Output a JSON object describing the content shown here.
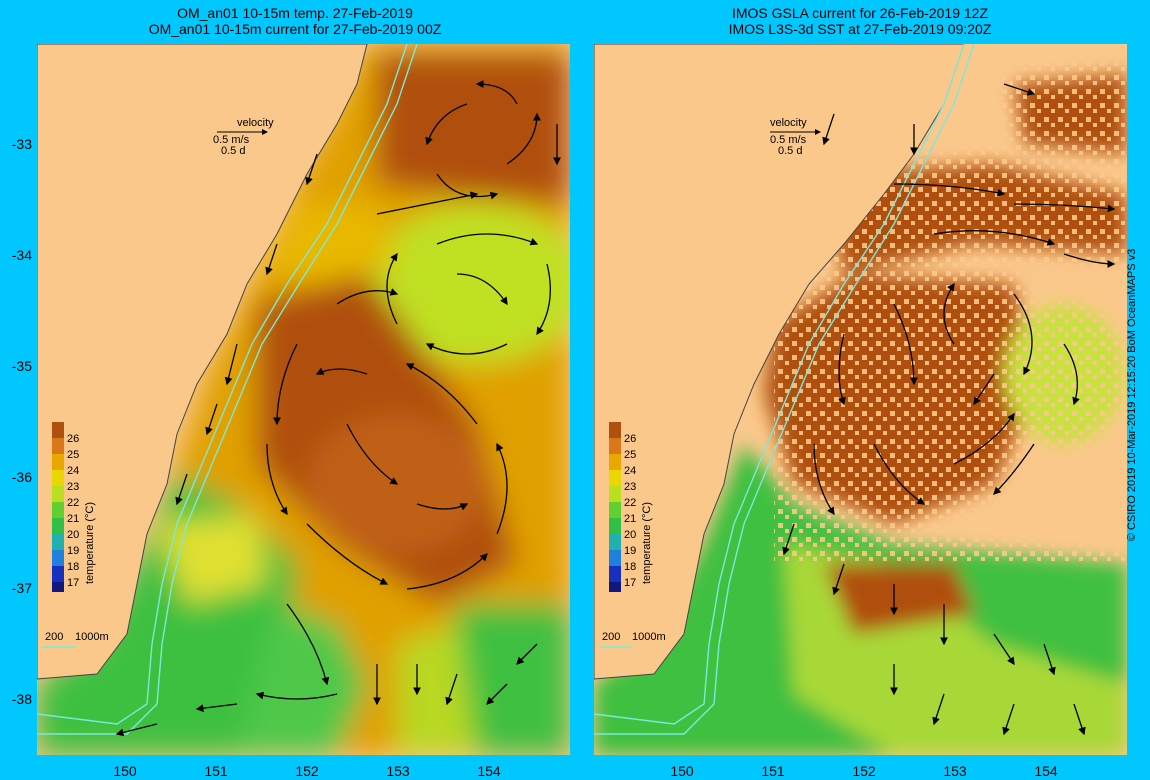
{
  "panels": [
    {
      "title_line1": "OM_an01 10-15m temp. 27-Feb-2019",
      "title_line2": "OM_an01 10-15m current for 27-Feb-2019 00Z"
    },
    {
      "title_line1": "IMOS GSLA current for 26-Feb-2019 12Z",
      "title_line2": "IMOS L3S-3d SST at 27-Feb-2019 09:20Z"
    }
  ],
  "velocity_key": {
    "label": "velocity",
    "speed": "0.5 m/s",
    "time": "0.5 d"
  },
  "colorbar": {
    "ticks": [
      "26",
      "25",
      "24",
      "23",
      "22",
      "21",
      "20",
      "19",
      "18",
      "17"
    ],
    "label": "temperature (°C)"
  },
  "isobath_legend": {
    "a": "200",
    "b": "1000m"
  },
  "y_ticks": [
    "-33",
    "-34",
    "-35",
    "-36",
    "-37",
    "-38"
  ],
  "x_ticks": [
    "150",
    "151",
    "152",
    "153",
    "154"
  ],
  "credit": "© CSIRO 2019  10-Mar-2019 12:15:20 BoM OceanMAPS v3",
  "colors": {
    "background": "#00c8ff",
    "land": "#fbc88c",
    "warm": "#b85410",
    "mid": "#e8b000",
    "cool": "#30c030",
    "isobath": "#7de8d8"
  }
}
